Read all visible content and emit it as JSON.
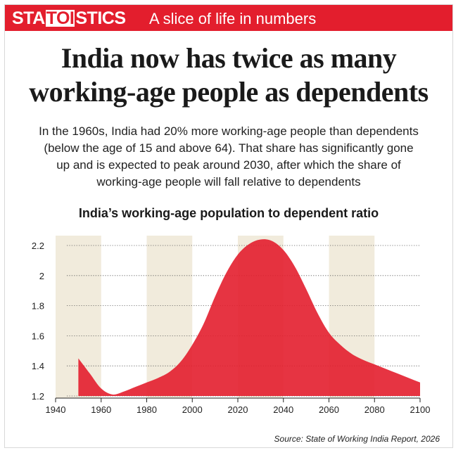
{
  "banner": {
    "brand_left": "STA",
    "brand_mid": "TOI",
    "brand_right": "STICS",
    "tagline": "A slice of life in numbers",
    "color": "#e31e2d"
  },
  "headline": {
    "line1": "India now has twice as many",
    "line2": "working-age people as dependents"
  },
  "intro": {
    "line1": "In the 1960s, India had 20% more working-age people than dependents",
    "line2": "(below the age of 15 and above 64). That share has significantly gone",
    "line3": "up and is expected to peak around 2030, after which the share of",
    "line4": "working-age people will fall relative to dependents"
  },
  "source": "Source: State of Working India Report, 2026",
  "chart_data": {
    "type": "area",
    "title": "India’s working-age population to dependent ratio",
    "xlabel": "",
    "ylabel": "",
    "xlim": [
      1940,
      2100
    ],
    "ylim": [
      1.2,
      2.3
    ],
    "x_ticks": [
      "1940",
      "1960",
      "1980",
      "2000",
      "2020",
      "2040",
      "2060",
      "2080",
      "2100"
    ],
    "y_ticks": [
      "1.2",
      "1.4",
      "1.6",
      "1.8",
      "2",
      "2.2"
    ],
    "grid": "horizontal dotted",
    "series": [
      {
        "color": "#e31e2d",
        "x": [
          1950,
          1955,
          1960,
          1965,
          1970,
          1975,
          1980,
          1985,
          1990,
          1995,
          2000,
          2005,
          2010,
          2015,
          2020,
          2025,
          2030,
          2035,
          2040,
          2045,
          2050,
          2055,
          2060,
          2065,
          2070,
          2075,
          2080,
          2085,
          2090,
          2095,
          2100
        ],
        "y": [
          1.45,
          1.35,
          1.25,
          1.21,
          1.23,
          1.26,
          1.29,
          1.32,
          1.36,
          1.43,
          1.54,
          1.68,
          1.86,
          2.02,
          2.14,
          2.21,
          2.24,
          2.23,
          2.17,
          2.06,
          1.91,
          1.75,
          1.62,
          1.54,
          1.48,
          1.44,
          1.41,
          1.38,
          1.35,
          1.32,
          1.29
        ]
      }
    ],
    "shaded_bands": [
      [
        1940,
        1960
      ],
      [
        1980,
        2000
      ],
      [
        2020,
        2040
      ],
      [
        2060,
        2080
      ]
    ],
    "band_color": "#f1ebdc"
  }
}
